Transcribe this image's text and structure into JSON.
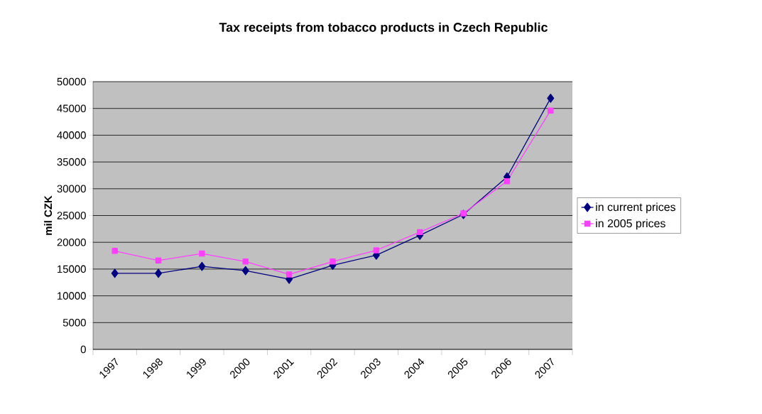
{
  "chart_data": {
    "type": "line",
    "title": "Tax receipts from tobacco products in Czech Republic",
    "ylabel": "mil CZK",
    "categories": [
      "1997",
      "1998",
      "1999",
      "2000",
      "2001",
      "2002",
      "2003",
      "2004",
      "2005",
      "2006",
      "2007"
    ],
    "series": [
      {
        "name": "in current prices",
        "color": "#000080",
        "marker": "diamond",
        "values": [
          14200,
          14200,
          15500,
          14700,
          13100,
          15700,
          17600,
          21300,
          25200,
          32200,
          46900
        ]
      },
      {
        "name": "in 2005 prices",
        "color": "#ff40ff",
        "marker": "square",
        "values": [
          18400,
          16600,
          17900,
          16400,
          14000,
          16400,
          18500,
          21900,
          25400,
          31400,
          44600
        ]
      }
    ],
    "ylim": [
      0,
      50000
    ],
    "yticks": [
      0,
      5000,
      10000,
      15000,
      20000,
      25000,
      30000,
      35000,
      40000,
      45000,
      50000
    ],
    "grid": "y",
    "legend": "right",
    "line_style": "solid"
  }
}
